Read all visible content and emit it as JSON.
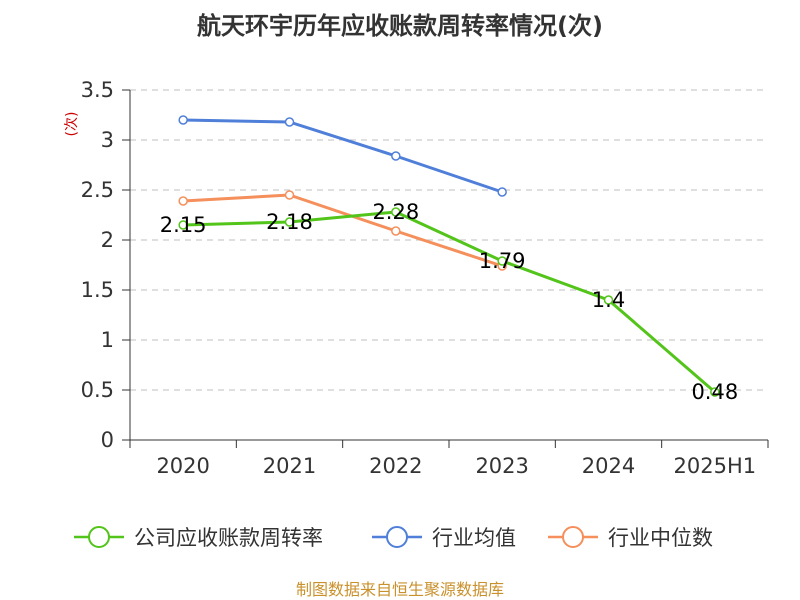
{
  "chart_data": {
    "type": "line",
    "title": "航天环宇历年应收账款周转率情况(次)",
    "ylabel": "(次)",
    "categories": [
      "2020",
      "2021",
      "2022",
      "2023",
      "2024",
      "2025H1"
    ],
    "y_ticks": [
      "0",
      "0.5",
      "1",
      "1.5",
      "2",
      "2.5",
      "3",
      "3.5"
    ],
    "ylim": [
      0,
      3.5
    ],
    "grid": true,
    "legend_position": "bottom",
    "series": [
      {
        "name": "公司应收账款周转率",
        "color": "#52c41a",
        "values": [
          2.15,
          2.18,
          2.28,
          1.79,
          1.4,
          0.48
        ],
        "labels": [
          "2.15",
          "2.18",
          "2.28",
          "1.79",
          "1.4",
          "0.48"
        ]
      },
      {
        "name": "行业均值",
        "color": "#4f7fd9",
        "values": [
          3.2,
          3.18,
          2.84,
          2.48,
          null,
          null
        ]
      },
      {
        "name": "行业中位数",
        "color": "#f58f5b",
        "values": [
          2.39,
          2.45,
          2.09,
          1.74,
          null,
          null
        ]
      }
    ]
  },
  "source": "制图数据来自恒生聚源数据库",
  "colors": {
    "ylabel": "#cc0000",
    "source": "#c9912c",
    "grid": "#cccccc",
    "axis": "#333333"
  }
}
